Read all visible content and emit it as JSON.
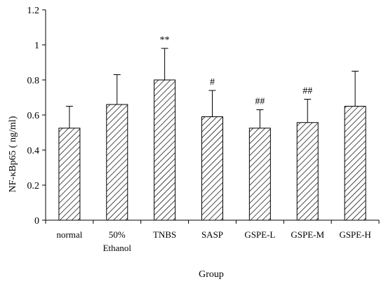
{
  "chart_data": {
    "type": "bar",
    "title": "",
    "xlabel": "Group",
    "ylabel": "NF-κBp65 ( ng/ml)",
    "ylim": [
      0,
      1.2
    ],
    "yticks": [
      0,
      0.2,
      0.4,
      0.6,
      0.8,
      1,
      1.2
    ],
    "ytick_labels": [
      "0",
      "0.2",
      "0.4",
      "0.6",
      "0.8",
      "1",
      "1.2"
    ],
    "grid": false,
    "bar_pattern": "diagonal-hatch",
    "categories": [
      [
        "normal"
      ],
      [
        "50%",
        "Ethanol"
      ],
      [
        "TNBS"
      ],
      [
        "SASP"
      ],
      [
        "GSPE-L"
      ],
      [
        "GSPE-M"
      ],
      [
        "GSPE-H"
      ]
    ],
    "values": [
      0.525,
      0.66,
      0.8,
      0.59,
      0.525,
      0.557,
      0.65
    ],
    "error_upper": [
      0.65,
      0.83,
      0.98,
      0.74,
      0.63,
      0.69,
      0.85
    ],
    "annotations": [
      "",
      "",
      "**",
      "#",
      "##",
      "##",
      ""
    ]
  }
}
